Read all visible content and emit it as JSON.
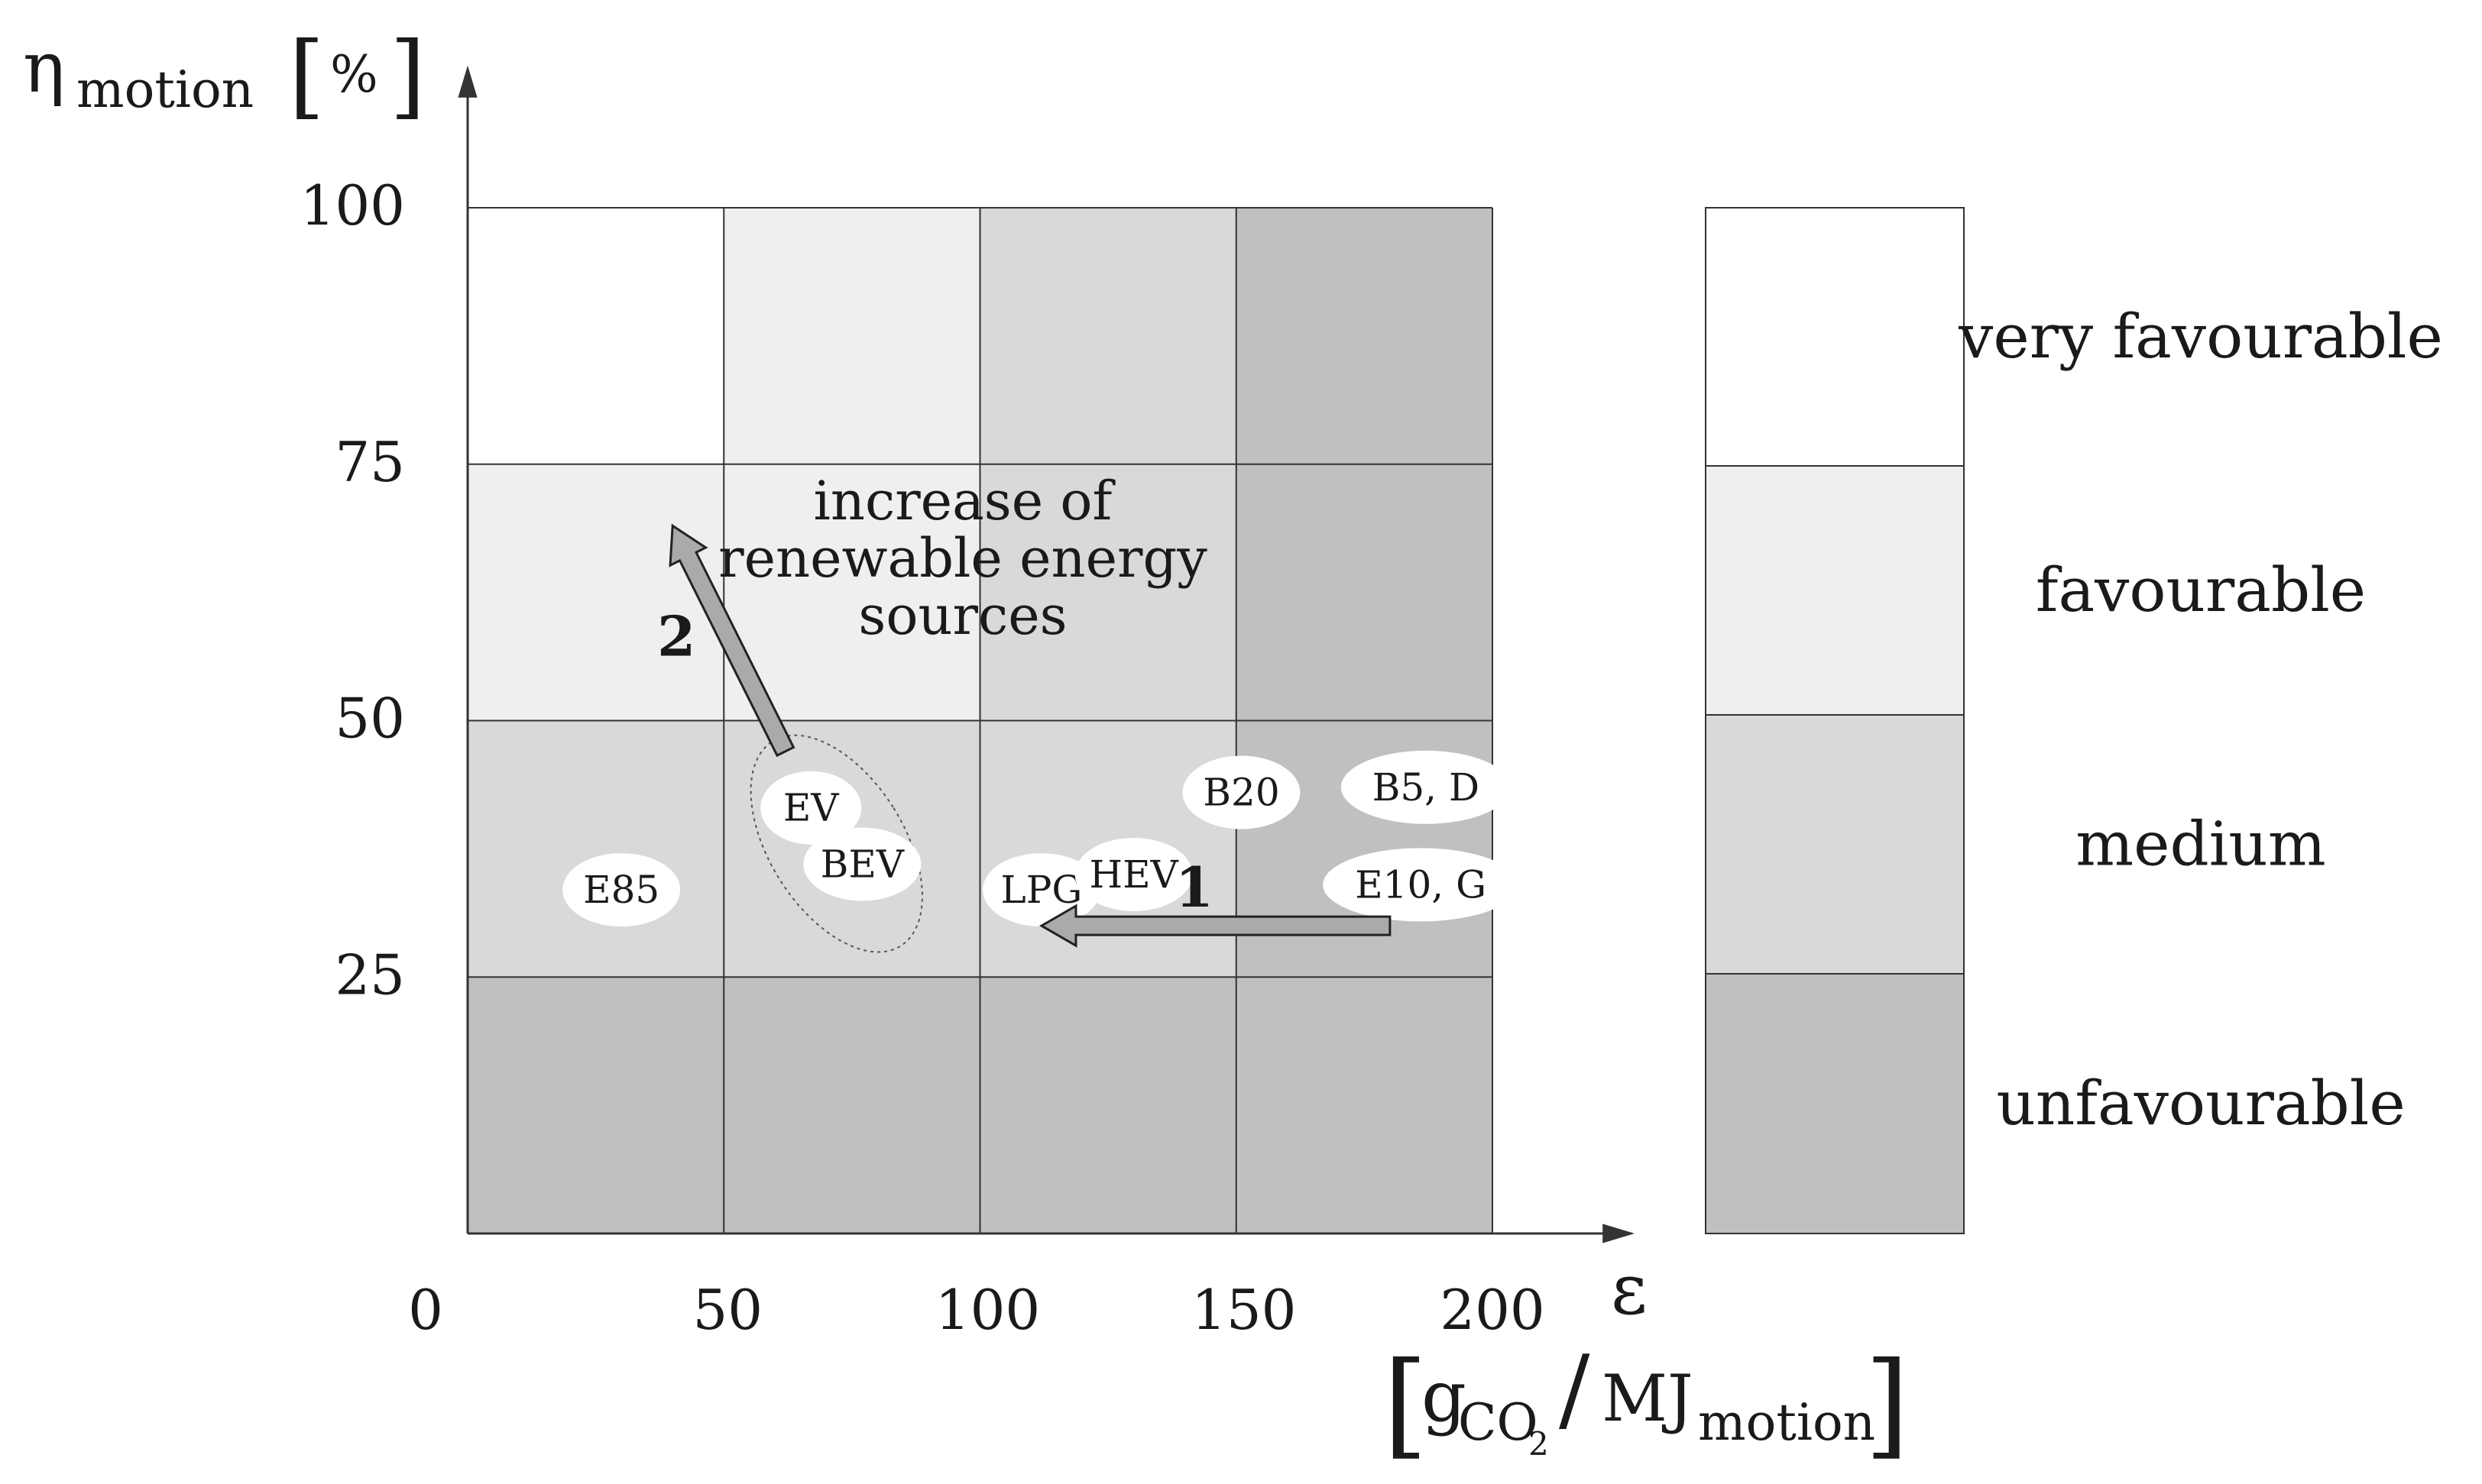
{
  "chart_data": {
    "type": "scatter",
    "title": "",
    "xlabel": {
      "symbol": "ε",
      "unit_main": "g",
      "unit_sub": "CO",
      "unit_subsub": "2",
      "unit_slash": "/",
      "unit_denom": "MJ",
      "unit_denom_sub": "motion",
      "bracket_open": "[",
      "bracket_close": "]"
    },
    "ylabel": {
      "symbol": "η",
      "sub": "motion",
      "unit": "%",
      "bracket_open": "[",
      "bracket_close": "]"
    },
    "xlim": [
      0,
      200
    ],
    "ylim": [
      0,
      100
    ],
    "x_ticks": [
      "0",
      "50",
      "100",
      "150",
      "200"
    ],
    "y_ticks": [
      "25",
      "50",
      "75",
      "100"
    ],
    "grid": true,
    "zone_colors": {
      "very favourable": "#ffffff",
      "favourable": "#efefef",
      "medium": "#d9d9d9",
      "unfavourable": "#c0c0c0"
    },
    "zone_grid": [
      [
        "very favourable",
        "favourable",
        "medium",
        "unfavourable"
      ],
      [
        "favourable",
        "favourable",
        "medium",
        "unfavourable"
      ],
      [
        "medium",
        "medium",
        "medium",
        "unfavourable"
      ],
      [
        "unfavourable",
        "unfavourable",
        "unfavourable",
        "unfavourable"
      ]
    ],
    "points": [
      {
        "label": "E85",
        "x": 30,
        "y": 33.5
      },
      {
        "label": "EV",
        "x": 67,
        "y": 41.5
      },
      {
        "label": "BEV",
        "x": 77,
        "y": 36
      },
      {
        "label": "LPG",
        "x": 112,
        "y": 33.5
      },
      {
        "label": "HEV",
        "x": 130,
        "y": 35
      },
      {
        "label": "B20",
        "x": 151,
        "y": 43
      },
      {
        "label": "B5, D",
        "x": 187,
        "y": 43.5
      },
      {
        "label": "E10, G",
        "x": 186,
        "y": 34
      }
    ],
    "arrows": [
      {
        "label": "1",
        "from": [
          180,
          30
        ],
        "to": [
          112,
          30
        ]
      },
      {
        "label": "2",
        "from": [
          62,
          47
        ],
        "to": [
          40,
          69
        ]
      }
    ],
    "annotation": [
      "increase of",
      "renewable energy",
      "sources"
    ],
    "legend": {
      "position": "right",
      "entries": [
        "very favourable",
        "favourable",
        "medium",
        "unfavourable"
      ]
    }
  }
}
